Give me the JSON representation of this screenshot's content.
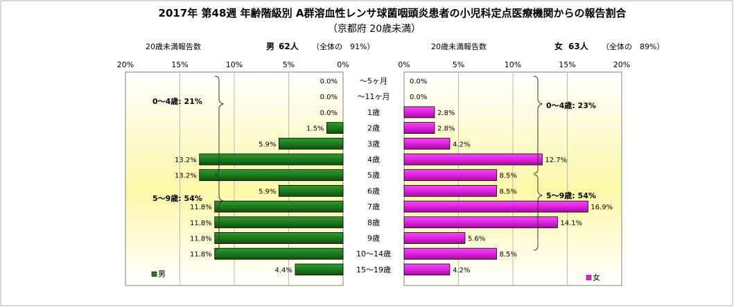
{
  "title": "2017年 第48週 年齢階級別 A群溶血性レンサ球菌咽頭炎患者の小児科定点医療機関からの報告割合",
  "subtitle": "（京都府 20歳未満）",
  "panels": {
    "left": {
      "caption": "20歳未満報告数",
      "summary_sex": "男",
      "summary_count": "62人",
      "summary_note": "（全体の　91%）",
      "ticks": [
        "20%",
        "15%",
        "10%",
        "5%",
        "0%"
      ]
    },
    "right": {
      "caption": "20歳未満報告数",
      "summary_sex": "女",
      "summary_count": "63人",
      "summary_note": "（全体の　89%）",
      "ticks": [
        "0%",
        "5%",
        "10%",
        "15%",
        "20%"
      ]
    }
  },
  "chart_data": {
    "type": "bar",
    "orientation": "horizontal-population-pyramid",
    "categories": [
      "～5ヶ月",
      "～11ヶ月",
      "1歳",
      "2歳",
      "3歳",
      "4歳",
      "5歳",
      "6歳",
      "7歳",
      "8歳",
      "9歳",
      "10～14歳",
      "15～19歳"
    ],
    "series": [
      {
        "name": "男",
        "color": "#1e7b1e",
        "values": [
          0.0,
          0.0,
          0.0,
          1.5,
          5.9,
          13.2,
          13.2,
          5.9,
          11.8,
          11.8,
          11.8,
          11.8,
          4.4
        ],
        "labels": [
          "0.0%",
          "0.0%",
          "0.0%",
          "1.5%",
          "5.9%",
          "13.2%",
          "13.2%",
          "5.9%",
          "11.8%",
          "11.8%",
          "11.8%",
          "11.8%",
          "4.4%"
        ]
      },
      {
        "name": "女",
        "color": "#e020e0",
        "values": [
          0.0,
          0.0,
          2.8,
          2.8,
          4.2,
          12.7,
          8.5,
          8.5,
          16.9,
          14.1,
          5.6,
          8.5,
          4.2
        ],
        "labels": [
          "0.0%",
          "0.0%",
          "2.8%",
          "2.8%",
          "4.2%",
          "12.7%",
          "8.5%",
          "8.5%",
          "16.9%",
          "14.1%",
          "5.6%",
          "8.5%",
          "4.2%"
        ]
      }
    ],
    "xlim": [
      0,
      20
    ],
    "unit": "%",
    "annotations": {
      "male_0_4": "0～4歳: 21%",
      "male_5_9": "5～9歳: 54%",
      "female_0_4": "0～4歳: 23%",
      "female_5_9": "5～9歳: 54%"
    },
    "legend": {
      "male": "男",
      "female": "女",
      "placement": "bottom-left / bottom-right"
    }
  }
}
